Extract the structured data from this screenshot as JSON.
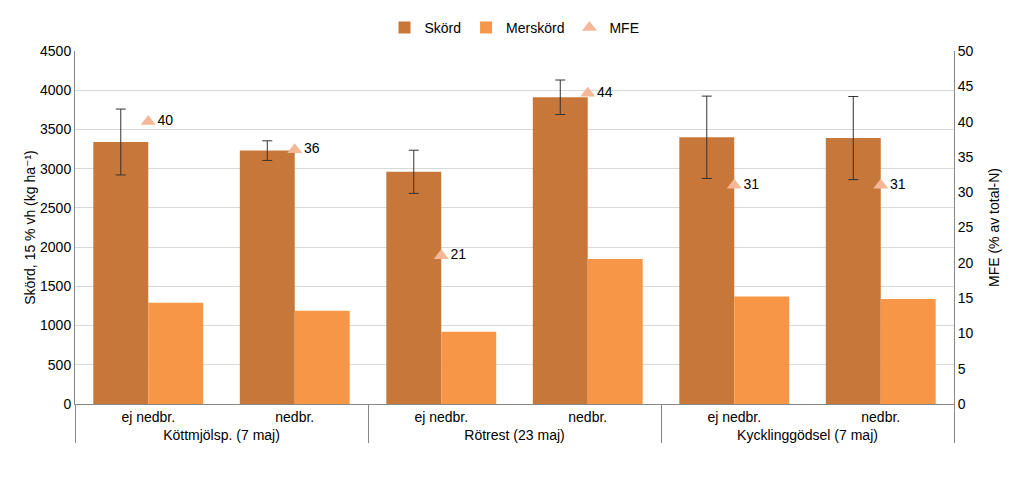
{
  "chart_data": {
    "type": "bar",
    "categories": [
      "ej nedbr.",
      "nedbr.",
      "ej nedbr.",
      "nedbr.",
      "ej nedbr.",
      "nedbr."
    ],
    "category_groups": [
      "Köttmjölsp. (7 maj)",
      "Köttmjölsp. (7 maj)",
      "Rötrest (23 maj)",
      "Rötrest (23 maj)",
      "Kycklinggödsel (7 maj)",
      "Kycklinggödsel (7 maj)"
    ],
    "y_label": "Skörd, 15 % vh (kg ha⁻¹)",
    "y2_label": "MFE (% av total-N)",
    "ylim": [
      0,
      4500
    ],
    "yticks": [
      0,
      500,
      1000,
      1500,
      2000,
      2500,
      3000,
      3500,
      4000,
      4500
    ],
    "y2lim": [
      0,
      50
    ],
    "y2ticks": [
      0,
      5,
      10,
      15,
      20,
      25,
      30,
      35,
      40,
      45,
      50
    ],
    "grid": true,
    "legend": "top",
    "series": [
      {
        "name": "Skörd",
        "type": "bar",
        "color": "#c8773a",
        "values": [
          3340,
          3230,
          2960,
          3910,
          3400,
          3390
        ],
        "errors": [
          420,
          125,
          275,
          220,
          525,
          530
        ]
      },
      {
        "name": "Merskörd",
        "type": "bar",
        "color": "#f79646",
        "values": [
          1290,
          1190,
          920,
          1850,
          1370,
          1340
        ]
      },
      {
        "name": "MFE",
        "type": "scatter",
        "marker": "triangle-up",
        "color": "#f4b898",
        "axis": "y2",
        "data_labels": true,
        "values": [
          40,
          36,
          21,
          44,
          31,
          31
        ]
      }
    ]
  }
}
